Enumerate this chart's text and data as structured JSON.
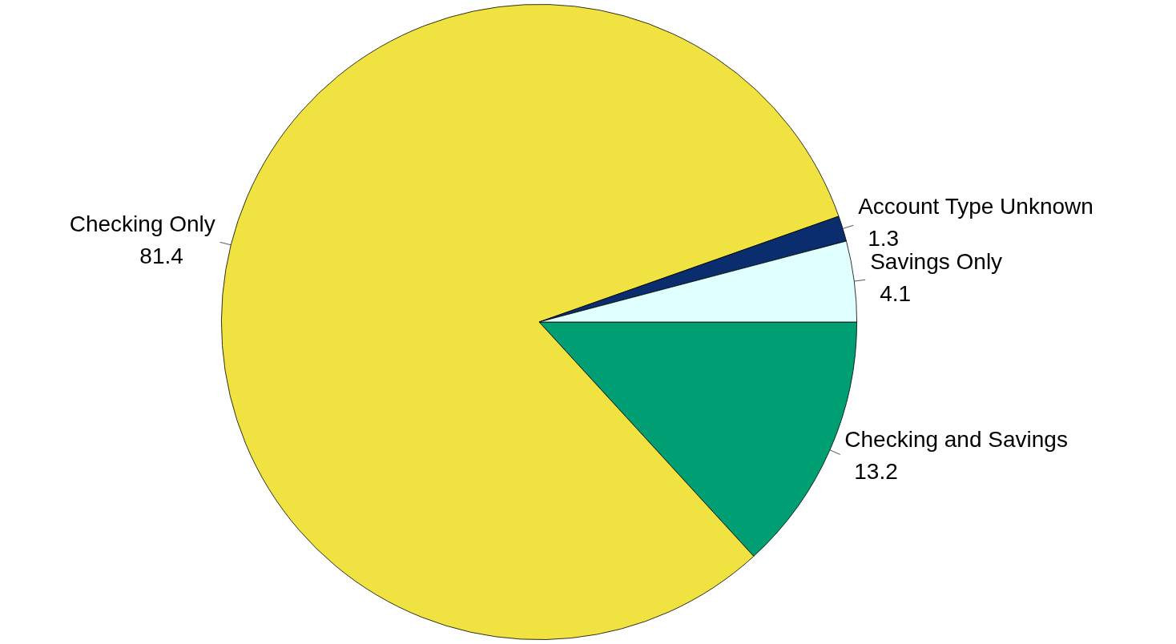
{
  "chart_data": {
    "type": "pie",
    "categories": [
      "Checking and Savings",
      "Checking Only",
      "Account Type Unknown",
      "Savings Only"
    ],
    "values": [
      13.2,
      81.4,
      1.3,
      4.1
    ],
    "colors": [
      "#009e73",
      "#efe241",
      "#0a2d6e",
      "#e0ffff"
    ],
    "data_labels": true
  }
}
